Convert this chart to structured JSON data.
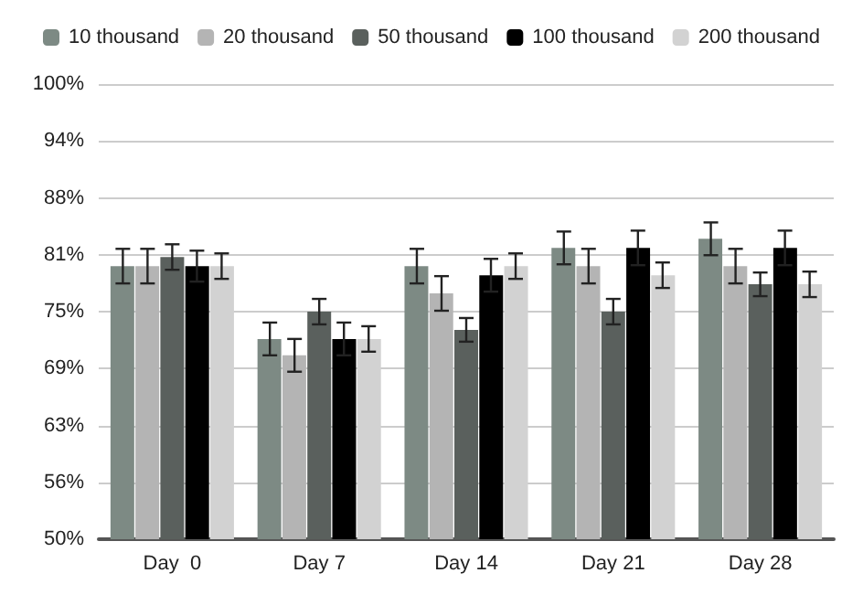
{
  "chart_data": {
    "type": "bar",
    "categories": [
      "Day  0",
      "Day 7",
      "Day 14",
      "Day 21",
      "Day 28"
    ],
    "series": [
      {
        "name": "10 thousand",
        "color": "#7d8a84",
        "values": [
          80,
          72,
          80,
          82,
          83
        ],
        "errors": [
          1.9,
          1.8,
          1.9,
          1.8,
          1.8
        ]
      },
      {
        "name": "20 thousand",
        "color": "#b4b4b4",
        "values": [
          80,
          70.2,
          77,
          80,
          80
        ],
        "errors": [
          1.9,
          1.8,
          1.9,
          1.9,
          1.9
        ]
      },
      {
        "name": "50 thousand",
        "color": "#5a605d",
        "values": [
          81,
          75,
          73,
          75,
          78
        ],
        "errors": [
          1.4,
          1.4,
          1.3,
          1.4,
          1.3
        ]
      },
      {
        "name": "100 thousand",
        "color": "#000000",
        "values": [
          80,
          72,
          79,
          82,
          82
        ],
        "errors": [
          1.7,
          1.8,
          1.8,
          1.9,
          1.9
        ]
      },
      {
        "name": "200 thousand",
        "color": "#d2d2d2",
        "values": [
          80,
          72,
          80,
          79,
          78
        ],
        "errors": [
          1.4,
          1.4,
          1.4,
          1.4,
          1.4
        ]
      }
    ],
    "ylim": [
      50,
      100
    ],
    "yticks": [
      {
        "value": 50,
        "label": "50%"
      },
      {
        "value": 56.25,
        "label": "56%"
      },
      {
        "value": 62.5,
        "label": "63%"
      },
      {
        "value": 68.75,
        "label": "69%"
      },
      {
        "value": 75,
        "label": "75%"
      },
      {
        "value": 81.25,
        "label": "81%"
      },
      {
        "value": 87.5,
        "label": "88%"
      },
      {
        "value": 93.75,
        "label": "94%"
      },
      {
        "value": 100,
        "label": "100%"
      }
    ],
    "grid": "y",
    "legend": "top"
  }
}
